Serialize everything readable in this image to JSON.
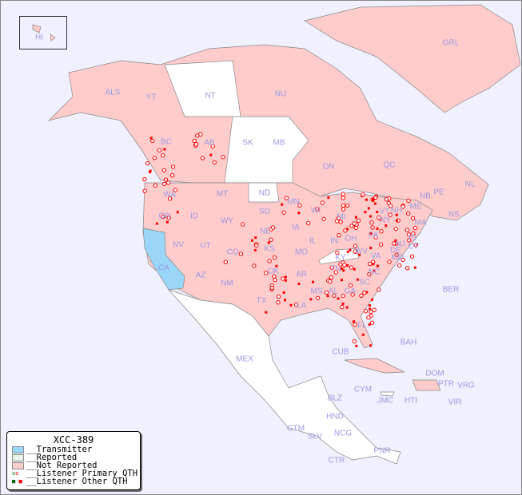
{
  "legend": {
    "title": "XCC-389",
    "items": [
      {
        "label": "__Transmitter",
        "color": "#99d6f8"
      },
      {
        "label": "__Reported",
        "color": "#e6f7e6"
      },
      {
        "label": "__Not Reported",
        "color": "#ffcccc"
      },
      {
        "label": "__Listener Primary QTH",
        "marker": "circle"
      },
      {
        "label": "__Listener Other QTH",
        "marker": "square"
      }
    ]
  },
  "colors": {
    "ocean": "#f0f0ff",
    "not_reported": "#ffcccc",
    "transmitter": "#99d6f8",
    "unreported_white": "#ffffff",
    "marker": "#ff0000",
    "label": "#9a9ae0"
  },
  "regions": [
    "HI",
    "ALS",
    "YT",
    "NT",
    "NU",
    "GRL",
    "BC",
    "AB",
    "SK",
    "MB",
    "ON",
    "QC",
    "NL",
    "NS",
    "NB",
    "PE",
    "ME",
    "WA",
    "OR",
    "ID",
    "MT",
    "WY",
    "ND",
    "SD",
    "NE",
    "KS",
    "MN",
    "IA",
    "WI",
    "IL",
    "MO",
    "OK",
    "TX",
    "AR",
    "LA",
    "MS",
    "AL",
    "GA",
    "TN",
    "KY",
    "IN",
    "OH",
    "MI",
    "PA",
    "NY",
    "VT",
    "NH",
    "MA",
    "CT",
    "RI",
    "NJ",
    "DE",
    "MD",
    "VA",
    "WV",
    "NC",
    "SC",
    "FL",
    "NV",
    "UT",
    "CO",
    "AZ",
    "NM",
    "CA",
    "MEX",
    "CUB",
    "BAH",
    "BER",
    "DOM",
    "PTR",
    "VRG",
    "CYM",
    "JMC",
    "HTI",
    "VIR",
    "BLZ",
    "GTM",
    "HND",
    "SLV",
    "NCG",
    "CTR",
    "PNR"
  ]
}
